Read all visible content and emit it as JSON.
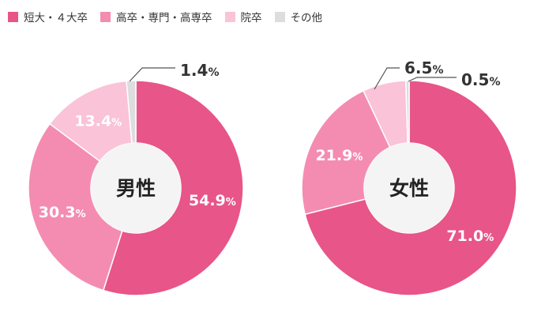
{
  "legend": [
    {
      "label": "短大・４大卒",
      "color": "#e85588"
    },
    {
      "label": "高卒・専門・高専卒",
      "color": "#f48cb1"
    },
    {
      "label": "院卒",
      "color": "#fac3d7"
    },
    {
      "label": "その他",
      "color": "#dddddd"
    }
  ],
  "chart_data": [
    {
      "type": "pie",
      "title": "男性",
      "unit": "%",
      "categories": [
        "短大・４大卒",
        "高卒・専門・高専卒",
        "院卒",
        "その他"
      ],
      "values": [
        54.9,
        30.3,
        13.4,
        1.4
      ],
      "colors": [
        "#e85588",
        "#f48cb1",
        "#fac3d7",
        "#dddddd"
      ]
    },
    {
      "type": "pie",
      "title": "女性",
      "unit": "%",
      "categories": [
        "短大・４大卒",
        "高卒・専門・高専卒",
        "院卒",
        "その他"
      ],
      "values": [
        71.0,
        21.9,
        6.5,
        0.5
      ],
      "colors": [
        "#e85588",
        "#f48cb1",
        "#fac3d7",
        "#dddddd"
      ]
    }
  ]
}
